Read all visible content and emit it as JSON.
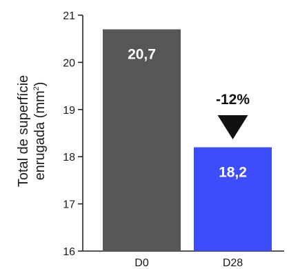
{
  "chart_data": {
    "type": "bar",
    "categories": [
      "D0",
      "D28"
    ],
    "values": [
      20.7,
      18.2
    ],
    "value_labels": [
      "20,7",
      "18,2"
    ],
    "bar_colors": [
      "#575757",
      "#3d4dfb"
    ],
    "ylabel_line1": "Total de superfície",
    "ylabel_line2": "enrugada (mm",
    "ylabel_sup": "2",
    "ylabel_close": ")",
    "ylim": [
      16,
      21
    ],
    "yticks": [
      16,
      17,
      18,
      19,
      20,
      21
    ],
    "annotation": {
      "text": "-12%",
      "marker": "down-triangle",
      "color": "#111111"
    },
    "grid": false,
    "legend": "none"
  }
}
